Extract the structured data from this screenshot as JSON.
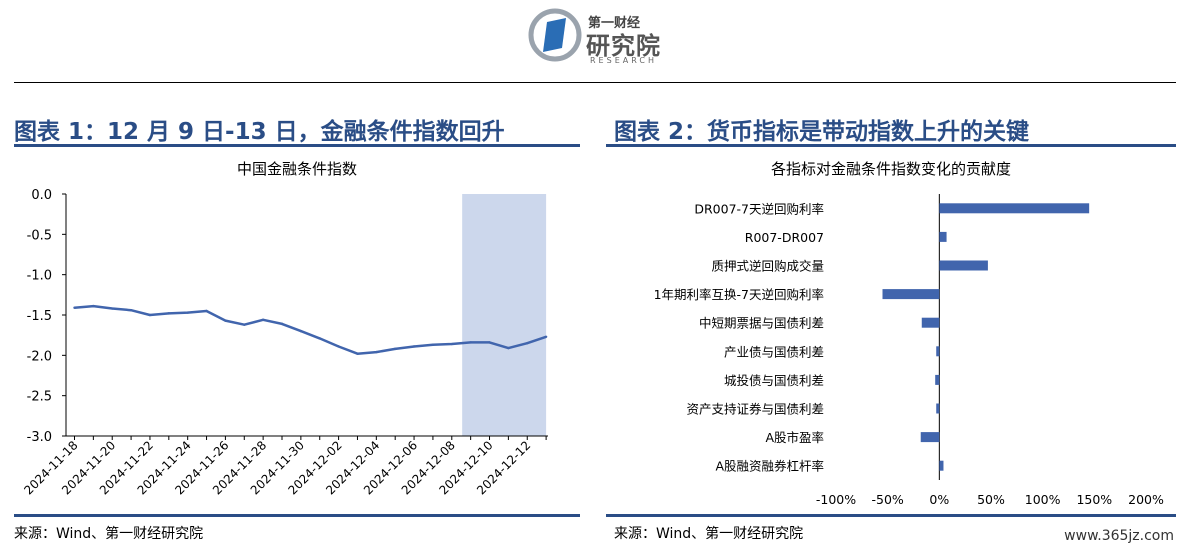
{
  "logo": {
    "top": "第一财经",
    "main": "研究院",
    "sub": "RESEARCH"
  },
  "figure1": {
    "title": "图表 1：12 月 9 日-13 日，金融条件指数回升",
    "source": "来源：Wind、第一财经研究院"
  },
  "figure2": {
    "title": "图表 2：货币指标是带动指数上升的关键",
    "source": "来源：Wind、第一财经研究院"
  },
  "watermark": "www.365jz.com",
  "chart_data": [
    {
      "type": "line",
      "title": "中国金融条件指数",
      "x": [
        "2024-11-18",
        "2024-11-19",
        "2024-11-20",
        "2024-11-21",
        "2024-11-22",
        "2024-11-23",
        "2024-11-24",
        "2024-11-25",
        "2024-11-26",
        "2024-11-27",
        "2024-11-28",
        "2024-11-29",
        "2024-11-30",
        "2024-12-01",
        "2024-12-02",
        "2024-12-03",
        "2024-12-04",
        "2024-12-05",
        "2024-12-06",
        "2024-12-07",
        "2024-12-08",
        "2024-12-09",
        "2024-12-10",
        "2024-12-11",
        "2024-12-12",
        "2024-12-13"
      ],
      "y": [
        -1.41,
        -1.39,
        -1.42,
        -1.44,
        -1.5,
        -1.48,
        -1.47,
        -1.45,
        -1.57,
        -1.62,
        -1.56,
        -1.61,
        -1.7,
        -1.79,
        -1.89,
        -1.98,
        -1.96,
        -1.92,
        -1.89,
        -1.87,
        -1.86,
        -1.84,
        -1.84,
        -1.91,
        -1.85,
        -1.77
      ],
      "xticks": [
        "2024-11-18",
        "2024-11-20",
        "2024-11-22",
        "2024-11-24",
        "2024-11-26",
        "2024-11-28",
        "2024-11-30",
        "2024-12-02",
        "2024-12-04",
        "2024-12-06",
        "2024-12-08",
        "2024-12-10",
        "2024-12-12"
      ],
      "yticks": [
        "0.0",
        "-0.5",
        "-1.0",
        "-1.5",
        "-2.0",
        "-2.5",
        "-3.0"
      ],
      "ylim": [
        -3.0,
        0.0
      ],
      "highlight": [
        "2024-12-09",
        "2024-12-13"
      ],
      "line_color": "#4165ad",
      "highlight_color": "#ccd7ec"
    },
    {
      "type": "bar",
      "orientation": "horizontal",
      "title": "各指标对金融条件指数变化的贡献度",
      "categories": [
        "DR007-7天逆回购利率",
        "R007-DR007",
        "质押式逆回购成交量",
        "1年期利率互换-7天逆回购利率",
        "中短期票据与国债利差",
        "产业债与国债利差",
        "城投债与国债利差",
        "资产支持证券与国债利差",
        "A股市盈率",
        "A股融资融券杠杆率"
      ],
      "values": [
        145,
        7,
        47,
        -55,
        -17,
        -3,
        -4,
        -3,
        -18,
        4
      ],
      "xticks": [
        "-100%",
        "-50%",
        "0%",
        "50%",
        "100%",
        "150%",
        "200%"
      ],
      "xlim": [
        -100,
        200
      ],
      "bar_color": "#4165ad"
    }
  ]
}
